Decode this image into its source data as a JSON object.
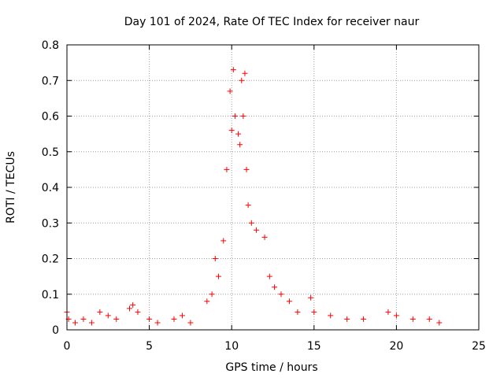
{
  "chart_data": {
    "type": "scatter",
    "title": "Day 101 of 2024, Rate Of TEC Index for receiver naur",
    "xlabel": "GPS time / hours",
    "ylabel": "ROTI / TECUs",
    "xlim": [
      0,
      25
    ],
    "ylim": [
      0,
      0.8
    ],
    "xticks": [
      0,
      5,
      10,
      15,
      20,
      25
    ],
    "yticks": [
      0,
      0.1,
      0.2,
      0.3,
      0.4,
      0.5,
      0.6,
      0.7,
      0.8
    ],
    "xtick_labels": [
      "0",
      "5",
      "10",
      "15",
      "20",
      "25"
    ],
    "ytick_labels": [
      "0",
      "0.1",
      "0.2",
      "0.3",
      "0.4",
      "0.5",
      "0.6",
      "0.7",
      "0.8"
    ],
    "grid": true,
    "marker": "+",
    "color": "#ff0000",
    "series": [
      {
        "name": "ROTI",
        "points": [
          [
            0.0,
            0.05
          ],
          [
            0.1,
            0.03
          ],
          [
            0.5,
            0.02
          ],
          [
            1.0,
            0.03
          ],
          [
            1.5,
            0.02
          ],
          [
            2.0,
            0.05
          ],
          [
            2.5,
            0.04
          ],
          [
            3.0,
            0.03
          ],
          [
            3.8,
            0.06
          ],
          [
            4.0,
            0.07
          ],
          [
            4.3,
            0.05
          ],
          [
            5.0,
            0.03
          ],
          [
            5.5,
            0.02
          ],
          [
            6.5,
            0.03
          ],
          [
            7.0,
            0.04
          ],
          [
            7.5,
            0.02
          ],
          [
            8.5,
            0.08
          ],
          [
            8.8,
            0.1
          ],
          [
            9.0,
            0.2
          ],
          [
            9.2,
            0.15
          ],
          [
            9.5,
            0.25
          ],
          [
            9.7,
            0.45
          ],
          [
            9.9,
            0.67
          ],
          [
            10.0,
            0.56
          ],
          [
            10.1,
            0.73
          ],
          [
            10.2,
            0.6
          ],
          [
            10.4,
            0.55
          ],
          [
            10.5,
            0.52
          ],
          [
            10.6,
            0.7
          ],
          [
            10.7,
            0.6
          ],
          [
            10.8,
            0.72
          ],
          [
            10.9,
            0.45
          ],
          [
            11.0,
            0.35
          ],
          [
            11.2,
            0.3
          ],
          [
            11.5,
            0.28
          ],
          [
            12.0,
            0.26
          ],
          [
            12.3,
            0.15
          ],
          [
            12.6,
            0.12
          ],
          [
            13.0,
            0.1
          ],
          [
            13.5,
            0.08
          ],
          [
            14.0,
            0.05
          ],
          [
            14.8,
            0.09
          ],
          [
            15.0,
            0.05
          ],
          [
            16.0,
            0.04
          ],
          [
            17.0,
            0.03
          ],
          [
            18.0,
            0.03
          ],
          [
            19.5,
            0.05
          ],
          [
            20.0,
            0.04
          ],
          [
            21.0,
            0.03
          ],
          [
            22.0,
            0.03
          ],
          [
            22.6,
            0.02
          ]
        ]
      }
    ]
  }
}
